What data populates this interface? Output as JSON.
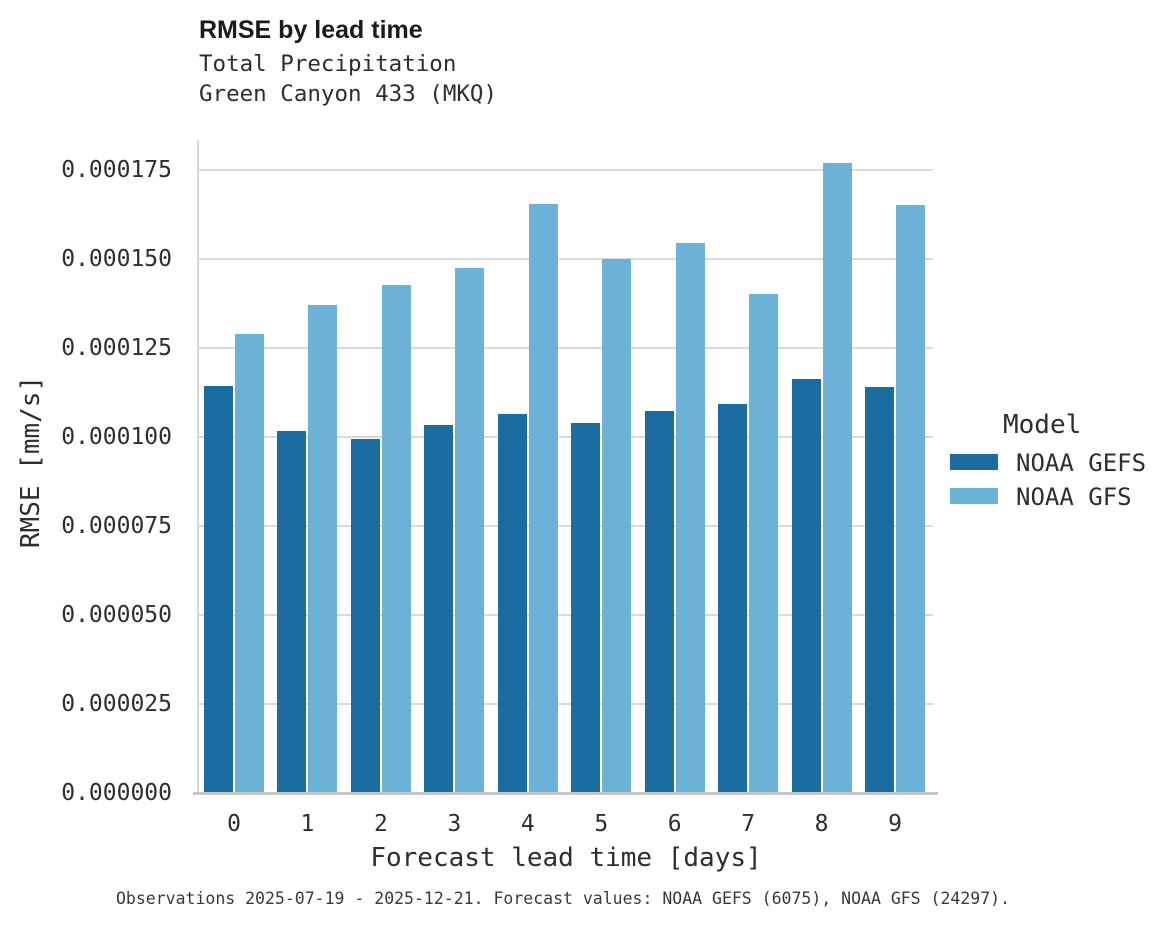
{
  "header": {
    "title": "RMSE by lead time",
    "subtitle1": "Total Precipitation",
    "subtitle2": "Green Canyon 433 (MKQ)"
  },
  "footer": {
    "caption": "Observations 2025-07-19 - 2025-12-21. Forecast values: NOAA GEFS (6075), NOAA GFS (24297)."
  },
  "legend": {
    "title": "Model",
    "entries": [
      {
        "label": "NOAA GEFS",
        "color": "#1A6D9E"
      },
      {
        "label": "NOAA GFS",
        "color": "#6BB1D8"
      }
    ]
  },
  "colors": {
    "gefs": "#1A6D9E",
    "gfs": "#6BB1D8",
    "gridline": "#DADADA",
    "axis_line": "#C6C6C6",
    "text": "#2E2E2E"
  },
  "chart_data": {
    "type": "bar",
    "title": "RMSE by lead time",
    "subtitle": [
      "Total Precipitation",
      "Green Canyon 433 (MKQ)"
    ],
    "xlabel": "Forecast lead time [days]",
    "ylabel": "RMSE [mm/s]",
    "categories": [
      "0",
      "1",
      "2",
      "3",
      "4",
      "5",
      "6",
      "7",
      "8",
      "9"
    ],
    "series": [
      {
        "name": "NOAA GEFS",
        "color": "#1A6D9E",
        "values": [
          0.0001142,
          0.0001017,
          9.93e-05,
          0.0001035,
          0.0001066,
          0.0001038,
          0.0001073,
          0.0001094,
          0.0001162,
          0.0001141
        ]
      },
      {
        "name": "NOAA GFS",
        "color": "#6BB1D8",
        "values": [
          0.000129,
          0.000137,
          0.0001428,
          0.0001476,
          0.0001655,
          0.0001499,
          0.0001545,
          0.0001401,
          0.000177,
          0.0001652
        ]
      }
    ],
    "ylim": [
      0,
      0.00018344
    ],
    "yticks": {
      "values": [
        0,
        2.5e-05,
        5e-05,
        7.5e-05,
        0.0001,
        0.000125,
        0.00015,
        0.000175
      ],
      "labels": [
        "0.000000",
        "0.000025",
        "0.000050",
        "0.000075",
        "0.000100",
        "0.000125",
        "0.000150",
        "0.000175"
      ]
    },
    "grid": "horizontal",
    "legend_position": "right",
    "legend_title": "Model"
  }
}
